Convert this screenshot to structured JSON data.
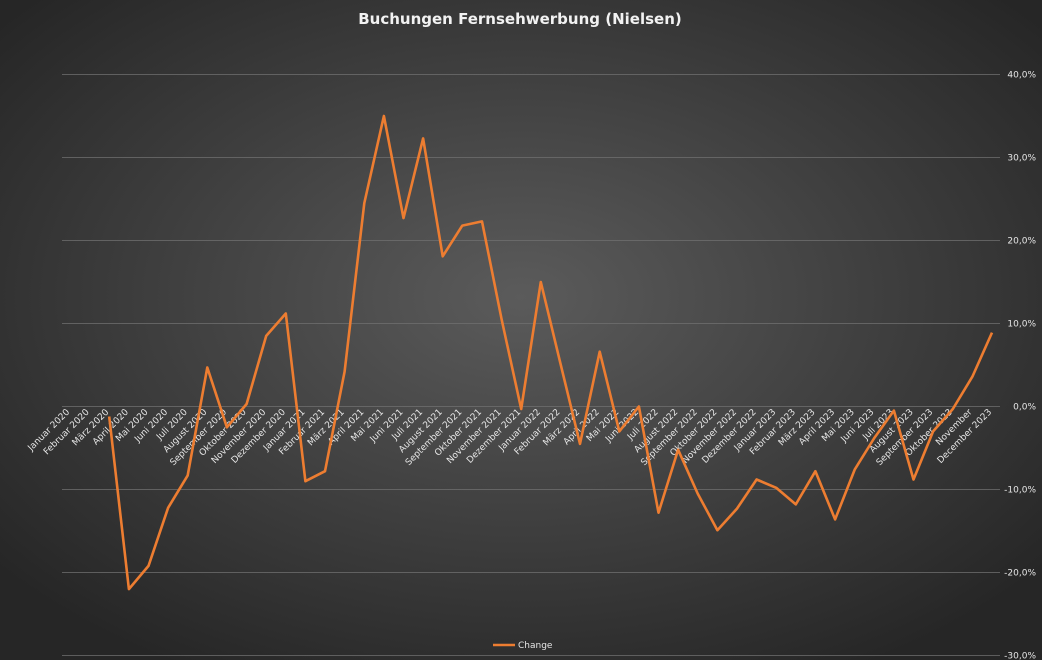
{
  "chart_data": {
    "type": "line",
    "title": "Buchungen Fernsehwerbung (Nielsen)",
    "categories": [
      "Januar 2020",
      "Februar 2020",
      "März 2020",
      "April 2020",
      "Mai 2020",
      "Juni 2020",
      "Juli 2020",
      "August 2020",
      "September 2020",
      "Oktober 2020",
      "November 2020",
      "Dezember 2020",
      "Januar 2021",
      "Februar 2021",
      "März 2021",
      "April 2021",
      "Mai 2021",
      "Juni 2021",
      "Juli 2021",
      "August 2021",
      "September 2021",
      "Oktober 2021",
      "November 2021",
      "Dezember 2021",
      "Januar 2022",
      "Februar 2022",
      "März 2022",
      "April 2022",
      "Mai 2022",
      "Juni 2022",
      "Juli 2022",
      "August 2022",
      "September 2022",
      "Oktober 2022",
      "November 2022",
      "Dezember 2022",
      "Januar 2023",
      "Februar 2023",
      "März 2023",
      "April 2023",
      "Mai 2023",
      "Juni 2023",
      "Juli 2023",
      "August 2023",
      "September 2023",
      "Oktober 2023",
      "November",
      "December 2023"
    ],
    "series": [
      {
        "name": "Change",
        "color": "#ed7d31",
        "values": [
          null,
          null,
          -1.2,
          -22,
          -19.2,
          -12.2,
          -8.3,
          4.7,
          -2.5,
          0.3,
          8.5,
          11.2,
          -9,
          -7.8,
          4.2,
          24.5,
          35,
          22.7,
          32.3,
          18.1,
          21.8,
          22.3,
          10.5,
          -0.3,
          15,
          5.2,
          -4.5,
          6.6,
          -3,
          0,
          -12.8,
          -5.2,
          -10.5,
          -14.9,
          -12.3,
          -8.8,
          -9.8,
          -11.8,
          -7.8,
          -13.6,
          -7.6,
          -3.8,
          -0.5,
          -8.8,
          -3,
          -0.3,
          3.6,
          8.9
        ]
      }
    ],
    "ylim": [
      -30,
      40
    ],
    "yticks": [
      {
        "value": -30,
        "label": "-30,0%"
      },
      {
        "value": -20,
        "label": "-20,0%"
      },
      {
        "value": -10,
        "label": "-10,0%"
      },
      {
        "value": 0,
        "label": "0,0%"
      },
      {
        "value": 10,
        "label": "10,0%"
      },
      {
        "value": 20,
        "label": "20,0%"
      },
      {
        "value": 30,
        "label": "30,0%"
      },
      {
        "value": 40,
        "label": "40,0%"
      }
    ],
    "y_axis_side": "right",
    "grid": true,
    "legend": "bottom"
  }
}
